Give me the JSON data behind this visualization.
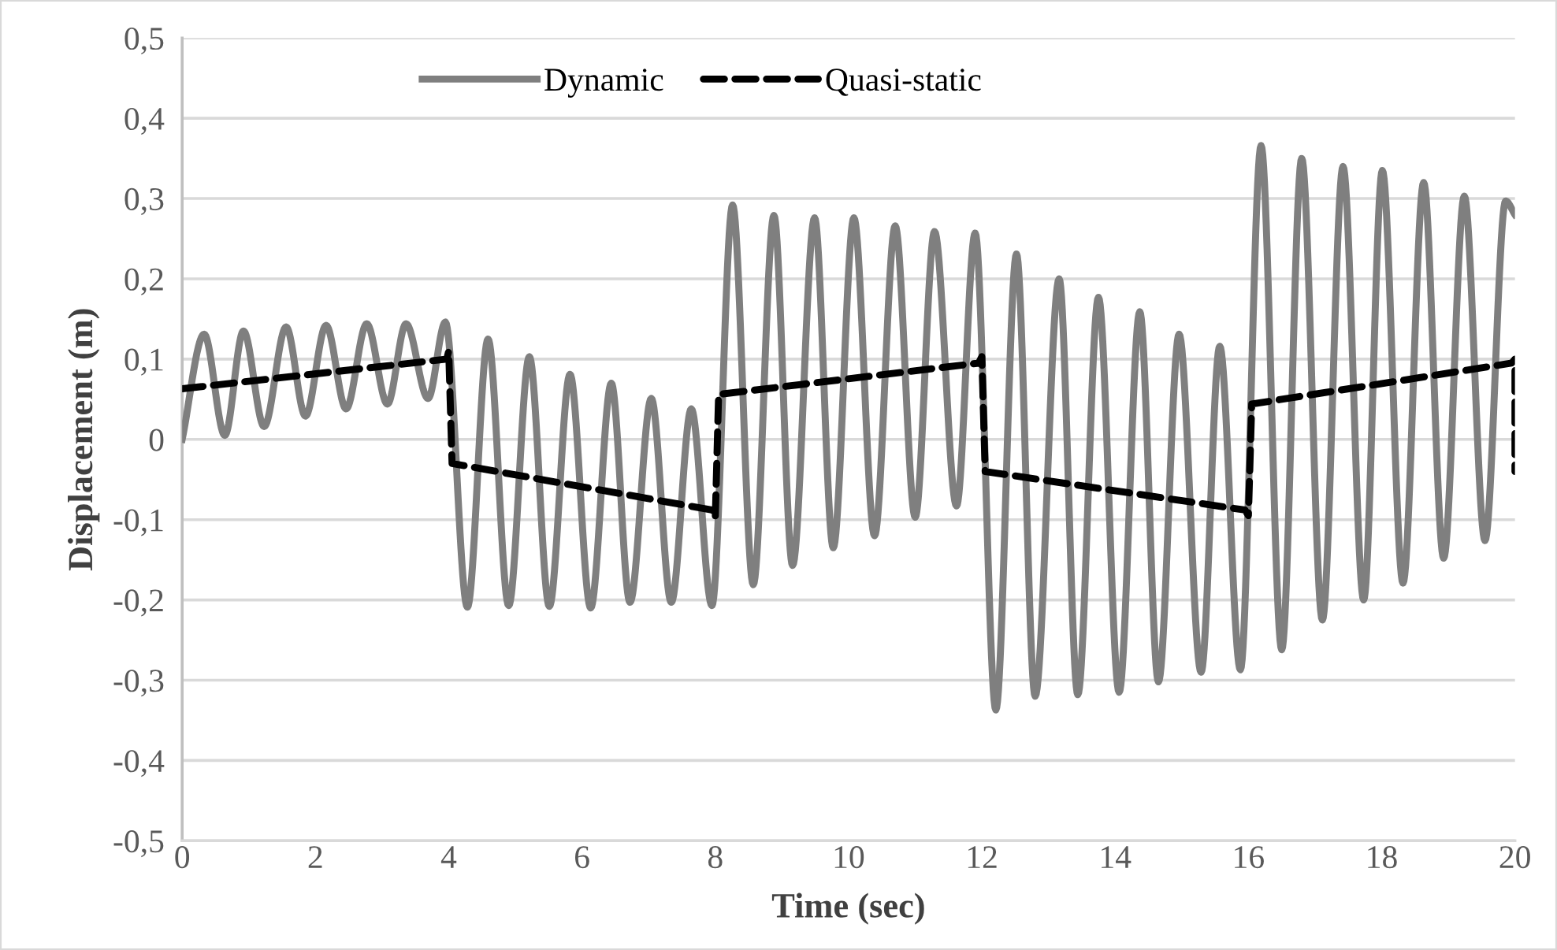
{
  "chart_data": {
    "type": "line",
    "xlabel": "Time (sec)",
    "ylabel": "Displacement (m)",
    "xlim": [
      0,
      20
    ],
    "xticks": [
      0,
      2,
      4,
      6,
      8,
      10,
      12,
      14,
      16,
      18,
      20
    ],
    "ylim": [
      -0.5,
      0.5
    ],
    "yticks": [
      {
        "value": -0.5,
        "label": "-0,5"
      },
      {
        "value": -0.4,
        "label": "-0,4"
      },
      {
        "value": -0.3,
        "label": "-0,3"
      },
      {
        "value": -0.2,
        "label": "-0,2"
      },
      {
        "value": -0.1,
        "label": "-0,1"
      },
      {
        "value": 0,
        "label": "0"
      },
      {
        "value": 0.1,
        "label": "0,1"
      },
      {
        "value": 0.2,
        "label": "0,2"
      },
      {
        "value": 0.3,
        "label": "0,3"
      },
      {
        "value": 0.4,
        "label": "0,4"
      },
      {
        "value": 0.5,
        "label": "0,5"
      }
    ],
    "grid": "y",
    "legend": "top",
    "marker": "none",
    "series": [
      {
        "name": "Dynamic",
        "color": "#7f7f7f",
        "line_style": "solid",
        "x": [
          0,
          0.33,
          0.64,
          0.92,
          1.23,
          1.56,
          1.85,
          2.16,
          2.46,
          2.77,
          3.08,
          3.36,
          3.69,
          3.95,
          4.28,
          4.59,
          4.9,
          5.21,
          5.51,
          5.82,
          6.13,
          6.44,
          6.72,
          7.04,
          7.34,
          7.64,
          7.95,
          8.26,
          8.57,
          8.88,
          9.16,
          9.49,
          9.77,
          10.08,
          10.39,
          10.7,
          11.0,
          11.29,
          11.62,
          11.9,
          12.21,
          12.52,
          12.8,
          13.16,
          13.44,
          13.75,
          14.06,
          14.37,
          14.65,
          14.96,
          15.29,
          15.57,
          15.88,
          16.19,
          16.5,
          16.8,
          17.11,
          17.42,
          17.73,
          18.01,
          18.32,
          18.63,
          18.93,
          19.24,
          19.55,
          19.86,
          20
        ],
        "values": [
          0,
          0.131,
          0.005,
          0.135,
          0.016,
          0.14,
          0.029,
          0.142,
          0.038,
          0.144,
          0.044,
          0.144,
          0.051,
          0.146,
          -0.209,
          0.125,
          -0.207,
          0.103,
          -0.208,
          0.081,
          -0.21,
          0.07,
          -0.203,
          0.051,
          -0.203,
          0.038,
          -0.207,
          0.292,
          -0.181,
          0.279,
          -0.157,
          0.276,
          -0.135,
          0.276,
          -0.12,
          0.266,
          -0.097,
          0.259,
          -0.083,
          0.257,
          -0.337,
          0.231,
          -0.32,
          0.2,
          -0.318,
          0.177,
          -0.315,
          0.159,
          -0.302,
          0.131,
          -0.29,
          0.116,
          -0.287,
          0.366,
          -0.262,
          0.35,
          -0.225,
          0.34,
          -0.2,
          0.335,
          -0.179,
          0.32,
          -0.148,
          0.303,
          -0.126,
          0.297,
          0.28
        ]
      },
      {
        "name": "Quasi-static",
        "color": "#000000",
        "line_style": "dashed",
        "x": [
          0,
          3.97,
          4.0,
          4.05,
          7.95,
          8.0,
          8.05,
          11.95,
          12.0,
          12.05,
          15.95,
          16.0,
          16.05,
          19.95,
          20.0,
          20.0
        ],
        "values": [
          0.063,
          0.1,
          0.11,
          -0.03,
          -0.088,
          -0.098,
          0.056,
          0.095,
          0.103,
          -0.04,
          -0.088,
          -0.095,
          0.044,
          0.095,
          0.1,
          -0.04
        ]
      }
    ]
  }
}
